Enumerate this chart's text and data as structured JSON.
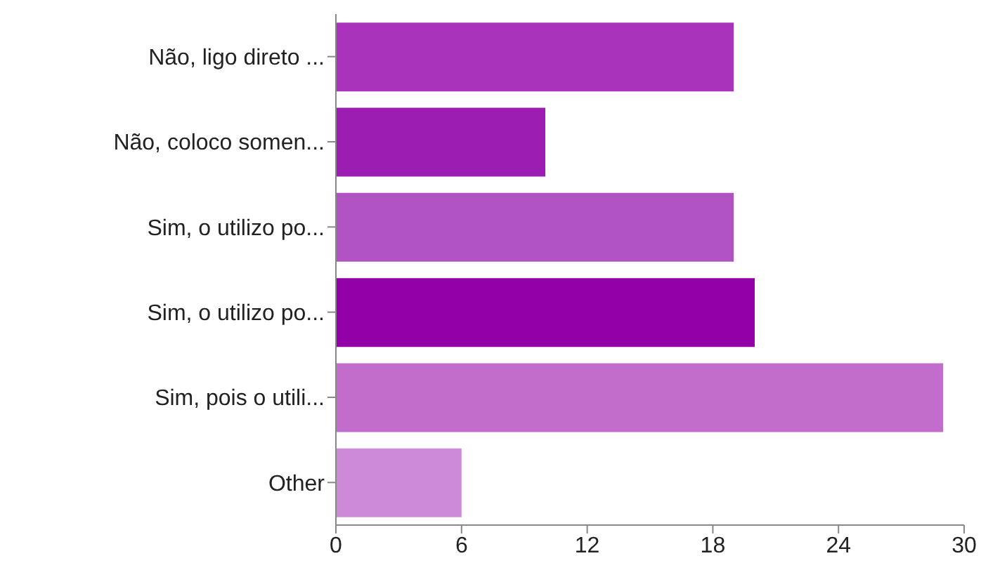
{
  "chart_data": {
    "type": "bar",
    "orientation": "horizontal",
    "categories": [
      "Não, ligo direto ...",
      "Não, coloco somen...",
      "Sim, o utilizo po...",
      "Sim, o utilizo po...",
      "Sim, pois o utili...",
      "Other"
    ],
    "values": [
      19,
      10,
      19,
      20,
      29,
      6
    ],
    "colors": [
      "#aa33bb",
      "#9c1db1",
      "#b052c2",
      "#9300a8",
      "#c26ccc",
      "#cd8ad9"
    ],
    "xlim": [
      0,
      30
    ],
    "xticks": [
      0,
      6,
      12,
      18,
      24,
      30
    ],
    "grid": false
  }
}
